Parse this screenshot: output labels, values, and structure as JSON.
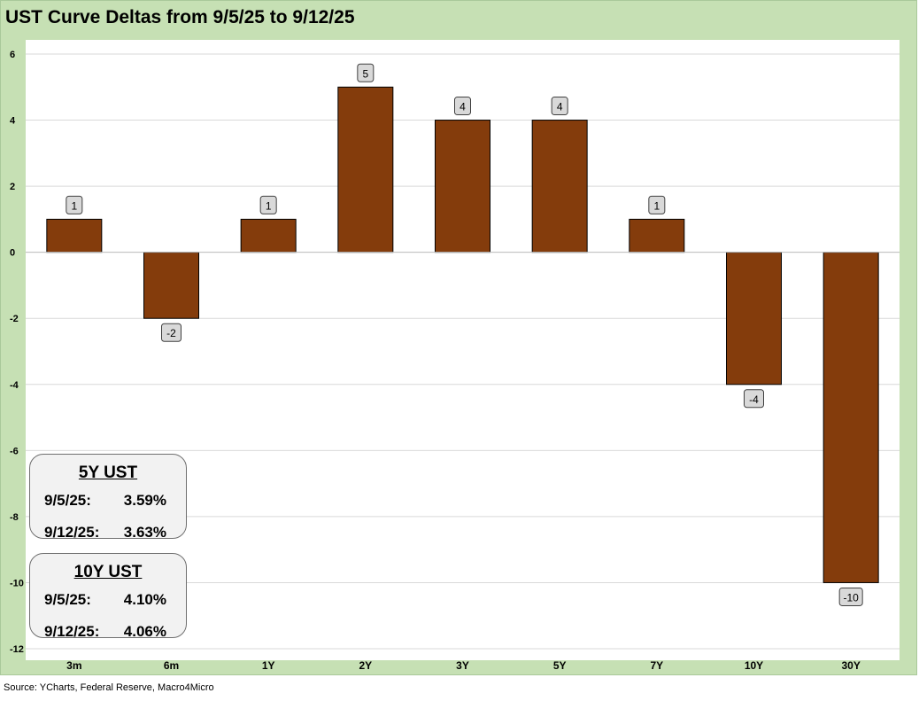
{
  "title": "UST Curve Deltas from 9/5/25 to 9/12/25",
  "source": "Source: YCharts, Federal Reserve, Macro4Micro",
  "colors": {
    "bar": "#843c0c",
    "background": "#c6e0b4",
    "plot": "#ffffff",
    "label_box": "#d9d9d9"
  },
  "chart_data": {
    "type": "bar",
    "categories": [
      "3m",
      "6m",
      "1Y",
      "2Y",
      "3Y",
      "5Y",
      "7Y",
      "10Y",
      "30Y"
    ],
    "values": [
      1,
      -2,
      1,
      5,
      4,
      4,
      1,
      -4,
      -10
    ],
    "data_labels": [
      "1",
      "-2",
      "1",
      "5",
      "4",
      "4",
      "1",
      "-4",
      "-10"
    ],
    "ylim": [
      -12,
      6
    ],
    "yticks": [
      6,
      4,
      2,
      0,
      -2,
      -4,
      -6,
      -8,
      -10,
      -12
    ],
    "grid": true,
    "legend": "none"
  },
  "boxes": [
    {
      "header": "5Y UST",
      "rows": [
        {
          "date": "9/5/25:",
          "value": "3.59%"
        },
        {
          "date": "9/12/25:",
          "value": "3.63%"
        }
      ]
    },
    {
      "header": "10Y UST",
      "rows": [
        {
          "date": "9/5/25:",
          "value": "4.10%"
        },
        {
          "date": "9/12/25:",
          "value": "4.06%"
        }
      ]
    }
  ]
}
